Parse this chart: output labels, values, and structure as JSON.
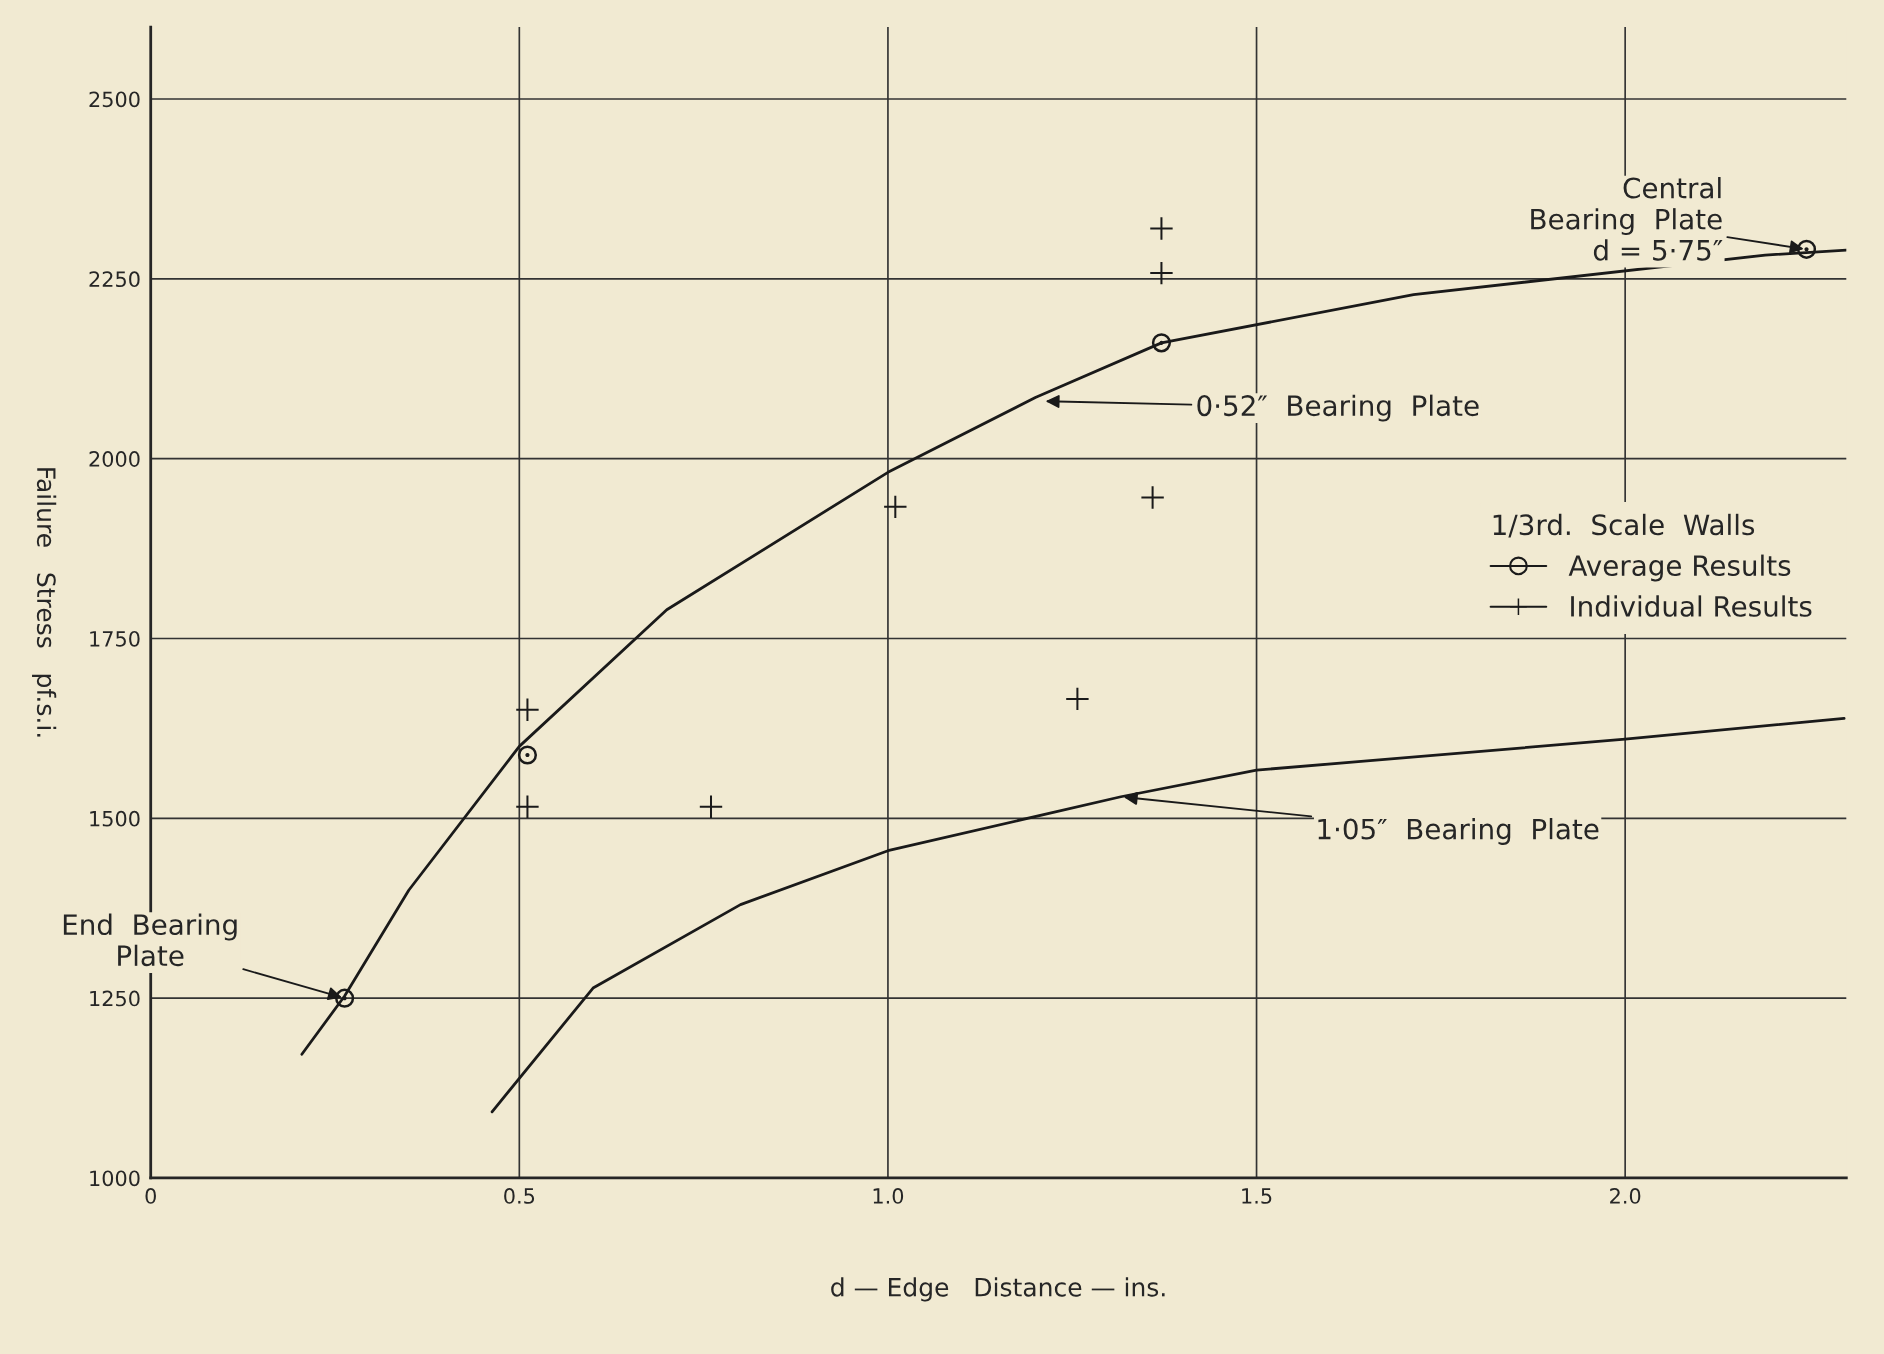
{
  "chart_data": {
    "type": "scatter",
    "xlabel": "d — Edge   Distance — ins.",
    "ylabel": "Failure   Stress   pf.s.i.",
    "xlim": [
      0,
      2.3
    ],
    "ylim": [
      1000,
      2600
    ],
    "xticks": [
      {
        "value": 0,
        "label": "0"
      },
      {
        "value": 0.5,
        "label": "0.5"
      },
      {
        "value": 1.0,
        "label": "1.0"
      },
      {
        "value": 1.5,
        "label": "1.5"
      },
      {
        "value": 2.0,
        "label": "2.0"
      }
    ],
    "yticks": [
      1000,
      1250,
      1500,
      1750,
      2000,
      2250,
      2500
    ],
    "grid": true,
    "legend": "right",
    "legend_title": "1/3rd.  Scale  Walls",
    "series": [
      {
        "type": "line",
        "color": "#1a1a1a",
        "marker": "none",
        "x": [
          0.205,
          0.263,
          0.35,
          0.5,
          0.7,
          1.0,
          1.2,
          1.371,
          1.713,
          2.19,
          2.3
        ],
        "values": [
          1172,
          1253,
          1400,
          1600,
          1790,
          1981,
          2085,
          2161,
          2228,
          2283,
          2290
        ]
      },
      {
        "type": "line",
        "color": "#1a1a1a",
        "marker": "none",
        "x": [
          0.463,
          0.6,
          0.8,
          1.0,
          1.316,
          1.5,
          2.0,
          2.297
        ],
        "values": [
          1092,
          1264,
          1380,
          1455,
          1530,
          1567,
          1610,
          1639
        ]
      },
      {
        "name": "Average Results",
        "color": "#1a1a1a",
        "marker": "circle",
        "x": [
          0.263,
          0.511,
          1.371,
          2.246
        ],
        "values": [
          1250,
          1588,
          2161,
          2291
        ]
      },
      {
        "name": "Individual Results",
        "color": "#1a1a1a",
        "marker": "cross",
        "x": [
          0.511,
          0.511,
          0.76,
          1.01,
          1.371,
          1.371,
          1.359,
          1.257
        ],
        "values": [
          1651,
          1516,
          1516,
          1933,
          2320,
          2258,
          1946,
          1666
        ]
      }
    ],
    "annotations": [
      {
        "text": "Central\nBearing  Plate\nd = 5·75″",
        "x": 2.246,
        "y": 2291
      },
      {
        "text": "0·52″  Bearing  Plate",
        "x": 1.21,
        "y": 2080
      },
      {
        "text": "End  Bearing\nPlate",
        "x": 0.263,
        "y": 1250
      },
      {
        "text": "1·05″  Bearing  Plate",
        "x": 1.316,
        "y": 1530
      }
    ]
  }
}
